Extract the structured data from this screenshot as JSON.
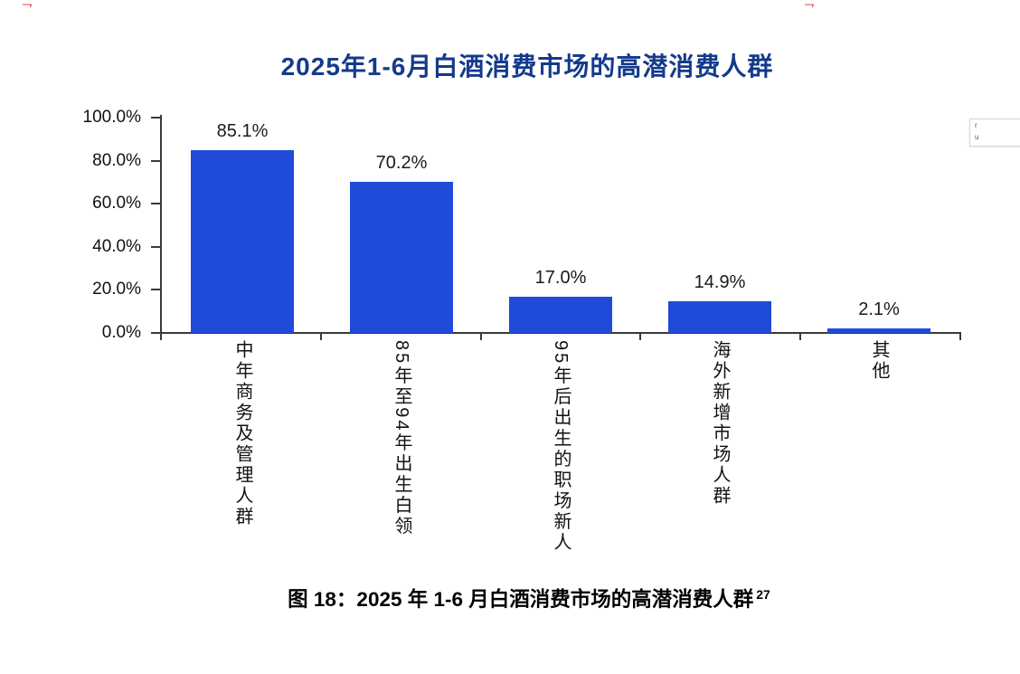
{
  "chart_data": {
    "type": "bar",
    "title": "2025年1-6月白酒消费市场的高潜消费人群",
    "title_color": "#143a8c",
    "categories": [
      "中年商务及管理人群",
      "85年至94年出生白领",
      "95年后出生的职场新人",
      "海外新增市场人群",
      "其他"
    ],
    "values": [
      85.1,
      70.2,
      17.0,
      14.9,
      2.1
    ],
    "value_labels": [
      "85.1%",
      "70.2%",
      "17.0%",
      "14.9%",
      "2.1%"
    ],
    "y_ticks": [
      "100.0%",
      "80.0%",
      "60.0%",
      "40.0%",
      "20.0%",
      "0.0%"
    ],
    "ylim": [
      0,
      100
    ],
    "bar_color": "#204bd8",
    "axis_color": "#3a3a3a",
    "grid": false,
    "legend": null,
    "xlabel": "",
    "ylabel": ""
  },
  "caption": {
    "text": "图 18：2025 年 1-6 月白酒消费市场的高潜消费人群",
    "footnote_ref": "27"
  },
  "annotations": {
    "red_mark_left": "乛",
    "red_mark_right": "乛",
    "clipped_box_lines": [
      "r",
      "u"
    ]
  }
}
